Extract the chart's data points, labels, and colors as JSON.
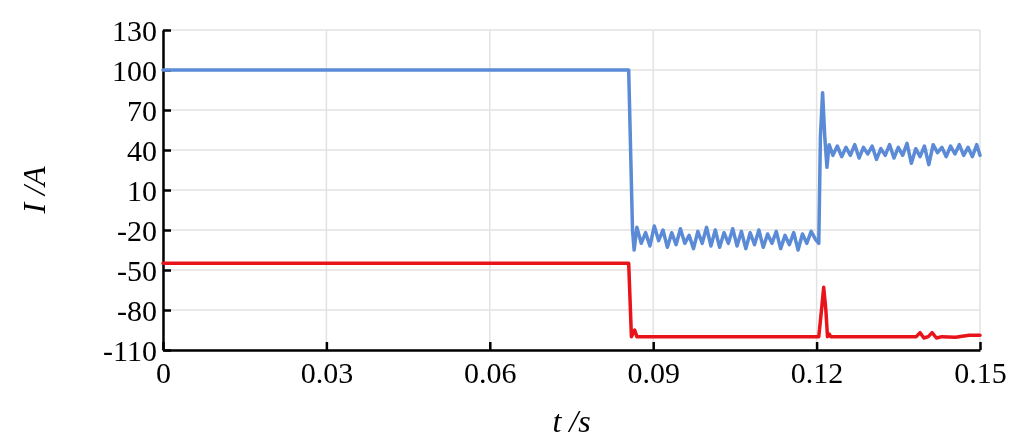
{
  "chart_data": {
    "type": "line",
    "xlabel": "t /s",
    "ylabel": "I /A",
    "xlim": [
      0,
      0.15
    ],
    "ylim": [
      -110,
      130
    ],
    "xticks": [
      0,
      0.03,
      0.06,
      0.09,
      0.12,
      0.15
    ],
    "yticks": [
      -110,
      -80,
      -50,
      -20,
      10,
      40,
      70,
      100,
      130
    ],
    "grid": true,
    "marker": "none",
    "line_style": "solid",
    "series": [
      {
        "color": "#5b8bd6",
        "x": [
          0,
          0.0855,
          0.0862,
          0.0865,
          0.087,
          0.0878,
          0.0886,
          0.0894,
          0.0902,
          0.091,
          0.0918,
          0.0926,
          0.0934,
          0.0942,
          0.095,
          0.0958,
          0.0966,
          0.0974,
          0.0982,
          0.099,
          0.0998,
          0.1006,
          0.1014,
          0.1022,
          0.103,
          0.1038,
          0.1046,
          0.1054,
          0.1062,
          0.107,
          0.1078,
          0.1086,
          0.1094,
          0.1102,
          0.111,
          0.1118,
          0.1126,
          0.1134,
          0.1142,
          0.115,
          0.1158,
          0.1166,
          0.1174,
          0.1182,
          0.119,
          0.1198,
          0.1204,
          0.1207,
          0.1211,
          0.1215,
          0.1219,
          0.1223,
          0.123,
          0.1238,
          0.1246,
          0.1254,
          0.1262,
          0.127,
          0.1278,
          0.1286,
          0.1294,
          0.1302,
          0.131,
          0.1318,
          0.1326,
          0.1334,
          0.1342,
          0.135,
          0.1358,
          0.1366,
          0.1374,
          0.1382,
          0.139,
          0.1398,
          0.1406,
          0.1414,
          0.1422,
          0.143,
          0.1438,
          0.1446,
          0.1454,
          0.1462,
          0.147,
          0.1478,
          0.1486,
          0.1494,
          0.15
        ],
        "values": [
          100,
          100,
          -20,
          -35,
          -18,
          -30,
          -22,
          -32,
          -17,
          -28,
          -20,
          -33,
          -22,
          -31,
          -19,
          -30,
          -24,
          -34,
          -21,
          -30,
          -18,
          -32,
          -20,
          -33,
          -22,
          -30,
          -19,
          -32,
          -21,
          -34,
          -22,
          -31,
          -20,
          -33,
          -23,
          -30,
          -21,
          -34,
          -24,
          -31,
          -22,
          -35,
          -23,
          -30,
          -21,
          -27,
          -30,
          50,
          83,
          50,
          27,
          44,
          36,
          43,
          35,
          42,
          36,
          44,
          34,
          42,
          37,
          43,
          33,
          41,
          36,
          44,
          34,
          42,
          36,
          45,
          30,
          41,
          35,
          43,
          29,
          44,
          38,
          42,
          35,
          43,
          37,
          44,
          36,
          42,
          35,
          44,
          36
        ]
      },
      {
        "color": "#e8141a",
        "x": [
          0,
          0.0855,
          0.086,
          0.0866,
          0.087,
          0.1204,
          0.1209,
          0.1213,
          0.1217,
          0.122,
          0.1223,
          0.1226,
          0.1383,
          0.139,
          0.1397,
          0.1405,
          0.1412,
          0.142,
          0.143,
          0.1455,
          0.148,
          0.15
        ],
        "values": [
          -45,
          -45,
          -100,
          -95,
          -100,
          -100,
          -80,
          -63,
          -80,
          -100,
          -98,
          -100,
          -100,
          -97,
          -101,
          -100,
          -97,
          -101,
          -100,
          -100.5,
          -99,
          -99
        ]
      }
    ]
  }
}
